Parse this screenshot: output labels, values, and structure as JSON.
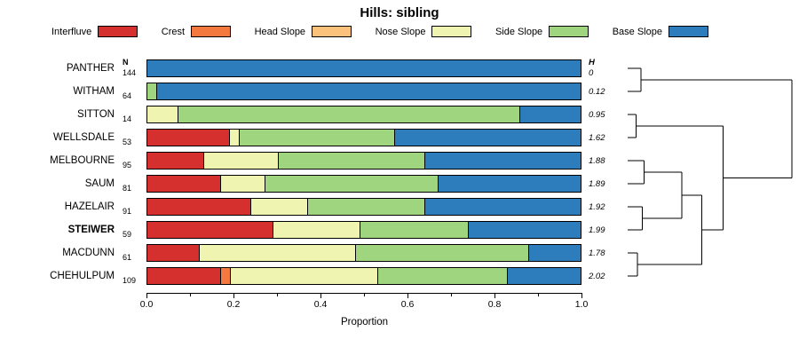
{
  "columns": {
    "n_header": "N",
    "h_header": "H"
  },
  "legend": [
    {
      "label": "Interfluve",
      "color": "#d6302e"
    },
    {
      "label": "Crest",
      "color": "#f4793e"
    },
    {
      "label": "Head Slope",
      "color": "#fbc27c"
    },
    {
      "label": "Nose Slope",
      "color": "#eff5b0"
    },
    {
      "label": "Side Slope",
      "color": "#9fd57f"
    },
    {
      "label": "Base Slope",
      "color": "#2d7cbb"
    }
  ],
  "chart_data": {
    "type": "bar",
    "orientation": "horizontal",
    "stacked": true,
    "title": "Hills: sibling",
    "xlabel": "Proportion",
    "xlim": [
      0,
      1
    ],
    "x_ticks": [
      0.0,
      0.2,
      0.4,
      0.6,
      0.8,
      1.0
    ],
    "x_tick_labels": [
      "0.0",
      "0.2",
      "0.4",
      "0.6",
      "0.8",
      "1.0"
    ],
    "minor_tick_step": 0.1,
    "legend_position": "top",
    "categories": [
      "Interfluve",
      "Crest",
      "Head Slope",
      "Nose Slope",
      "Side Slope",
      "Base Slope"
    ],
    "rows": [
      {
        "name": "PANTHER",
        "n": 144,
        "h": "0",
        "bold": false,
        "values": [
          0,
          0,
          0,
          0,
          0,
          1.0
        ]
      },
      {
        "name": "WITHAM",
        "n": 64,
        "h": "0.12",
        "bold": false,
        "values": [
          0,
          0,
          0,
          0,
          0.02,
          0.98
        ]
      },
      {
        "name": "SITTON",
        "n": 14,
        "h": "0.95",
        "bold": false,
        "values": [
          0,
          0,
          0,
          0.07,
          0.79,
          0.14
        ]
      },
      {
        "name": "WELLSDALE",
        "n": 53,
        "h": "1.62",
        "bold": false,
        "values": [
          0.19,
          0,
          0,
          0.02,
          0.36,
          0.43
        ]
      },
      {
        "name": "MELBOURNE",
        "n": 95,
        "h": "1.88",
        "bold": false,
        "values": [
          0.13,
          0,
          0,
          0.17,
          0.34,
          0.36
        ]
      },
      {
        "name": "SAUM",
        "n": 81,
        "h": "1.89",
        "bold": false,
        "values": [
          0.17,
          0,
          0,
          0.1,
          0.4,
          0.33
        ]
      },
      {
        "name": "HAZELAIR",
        "n": 91,
        "h": "1.92",
        "bold": false,
        "values": [
          0.24,
          0,
          0,
          0.13,
          0.27,
          0.36
        ]
      },
      {
        "name": "STEIWER",
        "n": 59,
        "h": "1.99",
        "bold": true,
        "values": [
          0.29,
          0,
          0,
          0.2,
          0.25,
          0.26
        ]
      },
      {
        "name": "MACDUNN",
        "n": 61,
        "h": "1.78",
        "bold": false,
        "values": [
          0.12,
          0,
          0,
          0.36,
          0.4,
          0.12
        ]
      },
      {
        "name": "CHEHULPUM",
        "n": 109,
        "h": "2.02",
        "bold": false,
        "values": [
          0.17,
          0.02,
          0,
          0.34,
          0.3,
          0.17
        ]
      }
    ],
    "dendrogram": {
      "leaves": [
        "PANTHER",
        "WITHAM",
        "SITTON",
        "WELLSDALE",
        "MELBOURNE",
        "SAUM",
        "HAZELAIR",
        "STEIWER",
        "MACDUNN",
        "CHEHULPUM"
      ],
      "merges": [
        {
          "id": "m1",
          "a": "PANTHER",
          "b": "WITHAM",
          "h": 0.08
        },
        {
          "id": "m2",
          "a": "SITTON",
          "b": "WELLSDALE",
          "h": 0.05
        },
        {
          "id": "m3",
          "a": "MELBOURNE",
          "b": "SAUM",
          "h": 0.1
        },
        {
          "id": "m4",
          "a": "HAZELAIR",
          "b": "STEIWER",
          "h": 0.09
        },
        {
          "id": "m5",
          "a": "MACDUNN",
          "b": "CHEHULPUM",
          "h": 0.06
        },
        {
          "id": "m6",
          "a": "m3",
          "b": "m4",
          "h": 0.33
        },
        {
          "id": "m7",
          "a": "m6",
          "b": "m5",
          "h": 0.45
        },
        {
          "id": "m8",
          "a": "m2",
          "b": "m7",
          "h": 0.58
        },
        {
          "id": "m9",
          "a": "m1",
          "b": "m8",
          "h": 1.0
        }
      ]
    }
  }
}
